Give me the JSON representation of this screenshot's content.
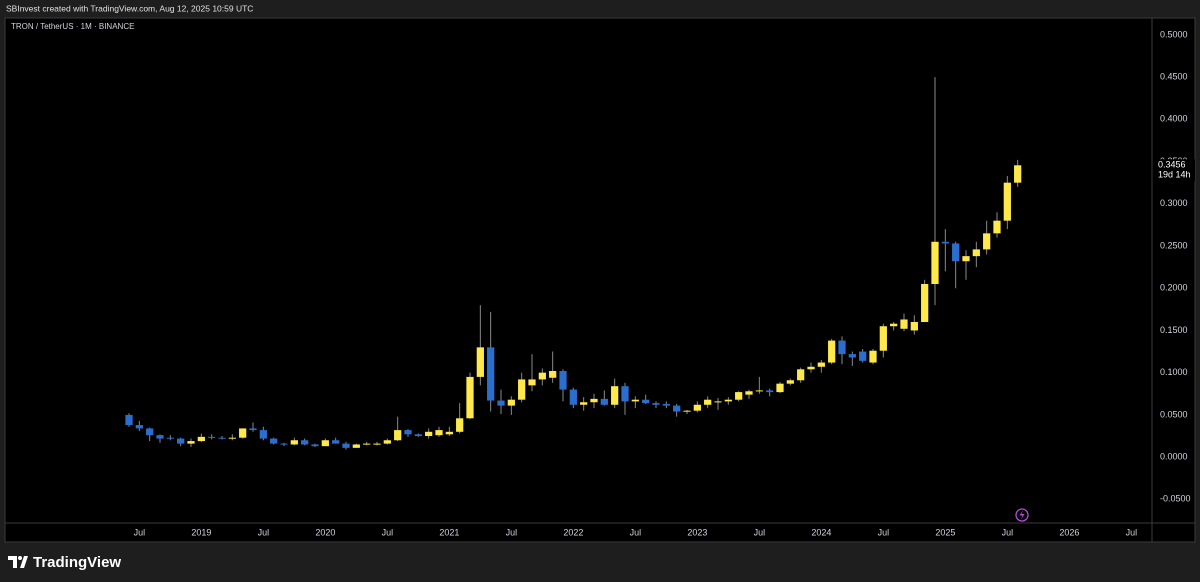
{
  "header": {
    "text": "SBInvest created with TradingView.com, Aug 12, 2025 10:59 UTC"
  },
  "footer": {
    "brand": "TradingView"
  },
  "chart_data": {
    "type": "candlestick",
    "title": "TRON / TetherUS · 1M · BINANCE",
    "x": [
      "2018-06",
      "2018-07",
      "2018-08",
      "2018-09",
      "2018-10",
      "2018-11",
      "2018-12",
      "2019-01",
      "2019-02",
      "2019-03",
      "2019-04",
      "2019-05",
      "2019-06",
      "2019-07",
      "2019-08",
      "2019-09",
      "2019-10",
      "2019-11",
      "2019-12",
      "2020-01",
      "2020-02",
      "2020-03",
      "2020-04",
      "2020-05",
      "2020-06",
      "2020-07",
      "2020-08",
      "2020-09",
      "2020-10",
      "2020-11",
      "2020-12",
      "2021-01",
      "2021-02",
      "2021-03",
      "2021-04",
      "2021-05",
      "2021-06",
      "2021-07",
      "2021-08",
      "2021-09",
      "2021-10",
      "2021-11",
      "2021-12",
      "2022-01",
      "2022-02",
      "2022-03",
      "2022-04",
      "2022-05",
      "2022-06",
      "2022-07",
      "2022-08",
      "2022-09",
      "2022-10",
      "2022-11",
      "2022-12",
      "2023-01",
      "2023-02",
      "2023-03",
      "2023-04",
      "2023-05",
      "2023-06",
      "2023-07",
      "2023-08",
      "2023-09",
      "2023-10",
      "2023-11",
      "2023-12",
      "2024-01",
      "2024-02",
      "2024-03",
      "2024-04",
      "2024-05",
      "2024-06",
      "2024-07",
      "2024-08",
      "2024-09",
      "2024-10",
      "2024-11",
      "2024-12",
      "2025-01",
      "2025-02",
      "2025-03",
      "2025-04",
      "2025-05",
      "2025-06",
      "2025-07",
      "2025-08"
    ],
    "open": [
      0.05,
      0.038,
      0.034,
      0.026,
      0.023,
      0.022,
      0.016,
      0.019,
      0.024,
      0.023,
      0.022,
      0.023,
      0.034,
      0.032,
      0.022,
      0.016,
      0.015,
      0.02,
      0.015,
      0.013,
      0.02,
      0.016,
      0.011,
      0.015,
      0.016,
      0.016,
      0.02,
      0.032,
      0.027,
      0.025,
      0.026,
      0.027,
      0.03,
      0.046,
      0.095,
      0.13,
      0.067,
      0.061,
      0.068,
      0.085,
      0.092,
      0.094,
      0.102,
      0.08,
      0.062,
      0.065,
      0.069,
      0.062,
      0.084,
      0.066,
      0.068,
      0.064,
      0.063,
      0.061,
      0.054,
      0.055,
      0.062,
      0.065,
      0.066,
      0.068,
      0.074,
      0.078,
      0.079,
      0.077,
      0.087,
      0.091,
      0.104,
      0.107,
      0.112,
      0.138,
      0.122,
      0.125,
      0.112,
      0.126,
      0.155,
      0.152,
      0.15,
      0.16,
      0.205,
      0.255,
      0.253,
      0.232,
      0.238,
      0.246,
      0.265,
      0.28,
      0.325
    ],
    "high": [
      0.052,
      0.043,
      0.035,
      0.027,
      0.026,
      0.023,
      0.022,
      0.028,
      0.027,
      0.025,
      0.027,
      0.034,
      0.041,
      0.036,
      0.023,
      0.017,
      0.023,
      0.022,
      0.016,
      0.022,
      0.023,
      0.018,
      0.016,
      0.018,
      0.018,
      0.022,
      0.048,
      0.033,
      0.028,
      0.034,
      0.036,
      0.036,
      0.064,
      0.1,
      0.18,
      0.172,
      0.08,
      0.072,
      0.1,
      0.122,
      0.105,
      0.125,
      0.104,
      0.082,
      0.071,
      0.075,
      0.079,
      0.093,
      0.088,
      0.072,
      0.074,
      0.066,
      0.066,
      0.063,
      0.056,
      0.066,
      0.072,
      0.07,
      0.071,
      0.078,
      0.08,
      0.095,
      0.081,
      0.089,
      0.093,
      0.106,
      0.112,
      0.115,
      0.14,
      0.143,
      0.125,
      0.128,
      0.128,
      0.158,
      0.16,
      0.17,
      0.168,
      0.21,
      0.45,
      0.27,
      0.255,
      0.245,
      0.255,
      0.28,
      0.29,
      0.333,
      0.352
    ],
    "low": [
      0.036,
      0.031,
      0.019,
      0.017,
      0.02,
      0.013,
      0.012,
      0.018,
      0.021,
      0.021,
      0.02,
      0.022,
      0.03,
      0.02,
      0.015,
      0.013,
      0.014,
      0.014,
      0.012,
      0.013,
      0.016,
      0.009,
      0.011,
      0.014,
      0.014,
      0.015,
      0.019,
      0.024,
      0.024,
      0.022,
      0.024,
      0.025,
      0.028,
      0.045,
      0.085,
      0.054,
      0.051,
      0.05,
      0.065,
      0.078,
      0.085,
      0.088,
      0.066,
      0.058,
      0.055,
      0.058,
      0.061,
      0.058,
      0.05,
      0.058,
      0.063,
      0.058,
      0.058,
      0.048,
      0.051,
      0.053,
      0.058,
      0.056,
      0.062,
      0.066,
      0.069,
      0.075,
      0.072,
      0.076,
      0.085,
      0.088,
      0.1,
      0.1,
      0.11,
      0.11,
      0.108,
      0.112,
      0.11,
      0.118,
      0.15,
      0.149,
      0.145,
      0.16,
      0.18,
      0.22,
      0.2,
      0.21,
      0.225,
      0.24,
      0.26,
      0.27,
      0.32
    ],
    "close": [
      0.038,
      0.034,
      0.026,
      0.022,
      0.022,
      0.016,
      0.019,
      0.024,
      0.023,
      0.022,
      0.023,
      0.034,
      0.032,
      0.022,
      0.016,
      0.015,
      0.02,
      0.015,
      0.013,
      0.02,
      0.016,
      0.011,
      0.015,
      0.016,
      0.016,
      0.02,
      0.032,
      0.027,
      0.025,
      0.03,
      0.032,
      0.03,
      0.046,
      0.095,
      0.13,
      0.067,
      0.061,
      0.068,
      0.092,
      0.092,
      0.1,
      0.102,
      0.08,
      0.062,
      0.065,
      0.069,
      0.062,
      0.084,
      0.066,
      0.068,
      0.064,
      0.062,
      0.061,
      0.054,
      0.055,
      0.062,
      0.068,
      0.066,
      0.068,
      0.077,
      0.078,
      0.079,
      0.077,
      0.087,
      0.091,
      0.104,
      0.107,
      0.112,
      0.138,
      0.122,
      0.118,
      0.114,
      0.126,
      0.155,
      0.158,
      0.163,
      0.16,
      0.205,
      0.255,
      0.253,
      0.232,
      0.238,
      0.246,
      0.265,
      0.28,
      0.325,
      0.3456
    ],
    "up_color": "#ffe94a",
    "down_color": "#2a6fd0",
    "wick_color": "#8a8a8a",
    "countdown": "19d 14h",
    "grid": false,
    "xlim": [
      "2017-06",
      "2026-09"
    ],
    "xticks": [
      {
        "value": "2018-07",
        "label": "Jul"
      },
      {
        "value": "2019-01",
        "label": "2019"
      },
      {
        "value": "2019-07",
        "label": "Jul"
      },
      {
        "value": "2020-01",
        "label": "2020"
      },
      {
        "value": "2020-07",
        "label": "Jul"
      },
      {
        "value": "2021-01",
        "label": "2021"
      },
      {
        "value": "2021-07",
        "label": "Jul"
      },
      {
        "value": "2022-01",
        "label": "2022"
      },
      {
        "value": "2022-07",
        "label": "Jul"
      },
      {
        "value": "2023-01",
        "label": "2023"
      },
      {
        "value": "2023-07",
        "label": "Jul"
      },
      {
        "value": "2024-01",
        "label": "2024"
      },
      {
        "value": "2024-07",
        "label": "Jul"
      },
      {
        "value": "2025-01",
        "label": "2025"
      },
      {
        "value": "2025-07",
        "label": "Jul"
      },
      {
        "value": "2026-01",
        "label": "2026"
      },
      {
        "value": "2026-07",
        "label": "Jul"
      }
    ],
    "ylim": [
      -0.078,
      0.52
    ],
    "yticks": [
      {
        "value": 0.5,
        "label": "0.5000"
      },
      {
        "value": 0.45,
        "label": "0.4500"
      },
      {
        "value": 0.4,
        "label": "0.4000"
      },
      {
        "value": 0.35,
        "label": "0.3500"
      },
      {
        "value": 0.3,
        "label": "0.3000"
      },
      {
        "value": 0.25,
        "label": "0.2500"
      },
      {
        "value": 0.2,
        "label": "0.2000"
      },
      {
        "value": 0.15,
        "label": "0.1500"
      },
      {
        "value": 0.1,
        "label": "0.1000"
      },
      {
        "value": 0.05,
        "label": "0.0500"
      },
      {
        "value": 0,
        "label": "0.0000"
      },
      {
        "value": -0.05,
        "label": "-0.0500"
      }
    ]
  }
}
